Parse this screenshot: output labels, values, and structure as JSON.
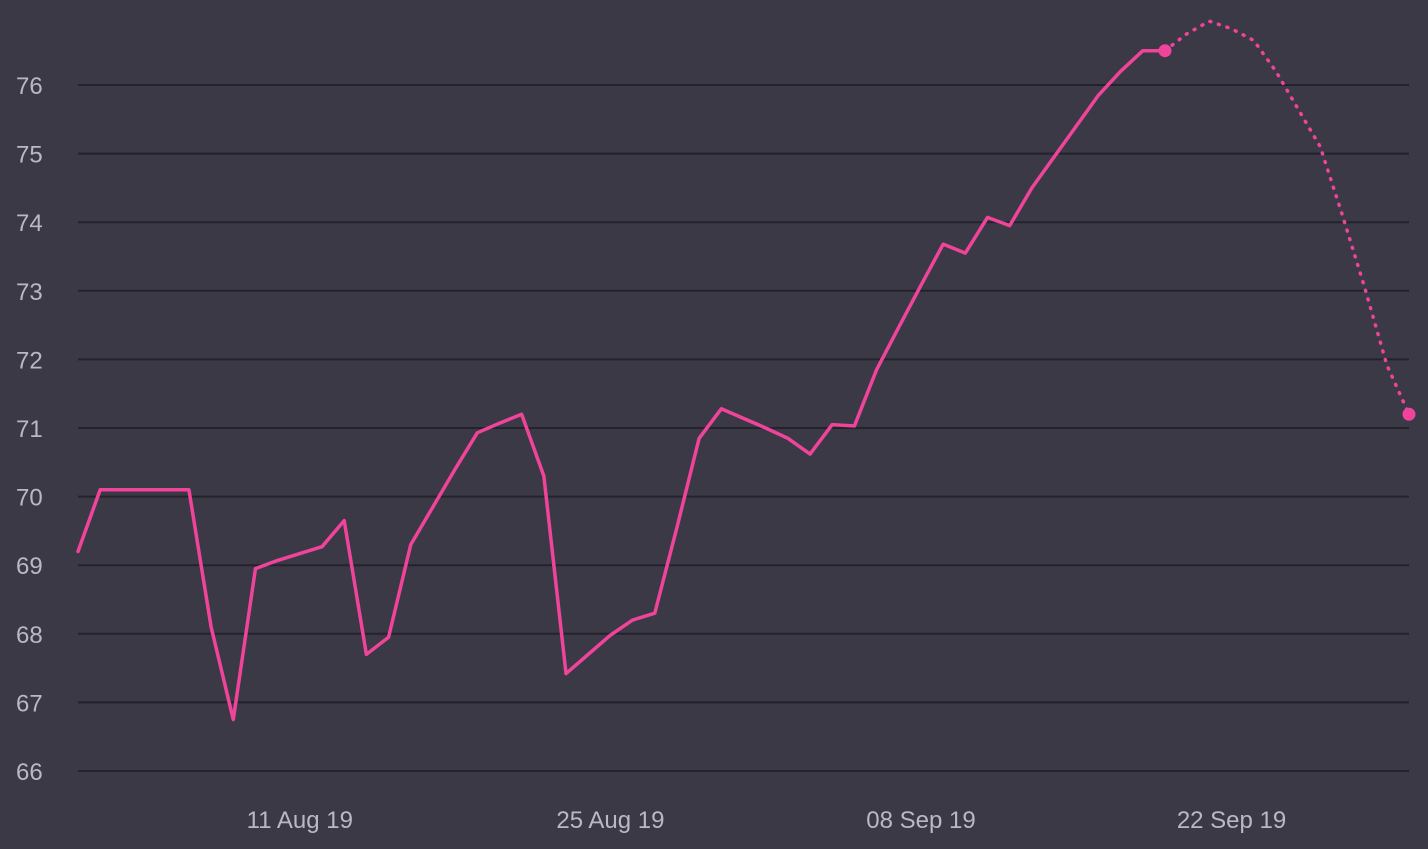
{
  "chart_data": {
    "type": "line",
    "title": "",
    "xlabel": "",
    "ylabel": "",
    "ylim": [
      66,
      76.9
    ],
    "xlim": [
      "2019-08-01",
      "2019-09-30"
    ],
    "grid": "horizontal",
    "colors": {
      "background": "#3a3945",
      "grid": "#24232c",
      "line": "#f0449a",
      "tick_text": "#b9b9c6"
    },
    "y_ticks": [
      {
        "value": 66,
        "label": "66"
      },
      {
        "value": 67,
        "label": "67"
      },
      {
        "value": 68,
        "label": "68"
      },
      {
        "value": 69,
        "label": "69"
      },
      {
        "value": 70,
        "label": "70"
      },
      {
        "value": 71,
        "label": "71"
      },
      {
        "value": 72,
        "label": "72"
      },
      {
        "value": 73,
        "label": "73"
      },
      {
        "value": 74,
        "label": "74"
      },
      {
        "value": 75,
        "label": "75"
      },
      {
        "value": 76,
        "label": "76"
      }
    ],
    "x_ticks": [
      {
        "value": "2019-08-11",
        "label": "11 Aug 19"
      },
      {
        "value": "2019-08-25",
        "label": "25 Aug 19"
      },
      {
        "value": "2019-09-08",
        "label": "08 Sep 19"
      },
      {
        "value": "2019-09-22",
        "label": "22 Sep 19"
      }
    ],
    "series": [
      {
        "style": "solid",
        "x": [
          "2019-08-01",
          "2019-08-02",
          "2019-08-03",
          "2019-08-04",
          "2019-08-05",
          "2019-08-06",
          "2019-08-07",
          "2019-08-08",
          "2019-08-09",
          "2019-08-10",
          "2019-08-11",
          "2019-08-12",
          "2019-08-13",
          "2019-08-14",
          "2019-08-15",
          "2019-08-16",
          "2019-08-17",
          "2019-08-18",
          "2019-08-19",
          "2019-08-20",
          "2019-08-21",
          "2019-08-22",
          "2019-08-23",
          "2019-08-24",
          "2019-08-25",
          "2019-08-26",
          "2019-08-27",
          "2019-08-28",
          "2019-08-29",
          "2019-08-30",
          "2019-08-31",
          "2019-09-01",
          "2019-09-02",
          "2019-09-03",
          "2019-09-04",
          "2019-09-05",
          "2019-09-06",
          "2019-09-07",
          "2019-09-08",
          "2019-09-09",
          "2019-09-10",
          "2019-09-11",
          "2019-09-12",
          "2019-09-13",
          "2019-09-14",
          "2019-09-15",
          "2019-09-16",
          "2019-09-17",
          "2019-09-18",
          "2019-09-19"
        ],
        "values": [
          69.2,
          70.1,
          70.1,
          70.1,
          70.1,
          70.1,
          68.1,
          66.75,
          68.95,
          69.07,
          69.17,
          69.27,
          69.65,
          67.7,
          67.95,
          69.3,
          69.85,
          70.4,
          70.93,
          71.07,
          71.2,
          70.3,
          67.42,
          67.7,
          67.98,
          68.2,
          68.3,
          69.55,
          70.85,
          71.28,
          71.14,
          71.0,
          70.85,
          70.62,
          71.05,
          71.03,
          71.85,
          72.47,
          73.08,
          73.68,
          73.55,
          74.07,
          73.95,
          74.5,
          74.95,
          75.4,
          75.85,
          76.2,
          76.5,
          76.5
        ],
        "markers": [
          {
            "x": "2019-09-19",
            "y": 76.5
          }
        ]
      },
      {
        "style": "dotted",
        "x": [
          "2019-09-19",
          "2019-09-20",
          "2019-09-21",
          "2019-09-22",
          "2019-09-23",
          "2019-09-24",
          "2019-09-25",
          "2019-09-26",
          "2019-09-27",
          "2019-09-28",
          "2019-09-29",
          "2019-09-30"
        ],
        "values": [
          76.5,
          76.75,
          76.93,
          76.82,
          76.65,
          76.2,
          75.65,
          75.1,
          74.1,
          73.05,
          71.92,
          71.2
        ],
        "markers": [
          {
            "x": "2019-09-30",
            "y": 71.2
          }
        ]
      }
    ]
  }
}
